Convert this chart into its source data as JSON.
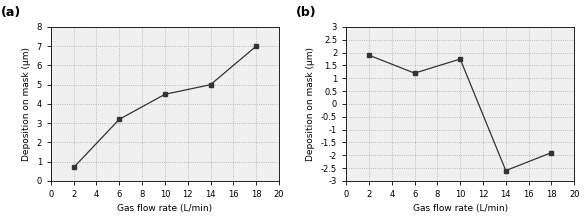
{
  "a_x": [
    2,
    6,
    10,
    14,
    18
  ],
  "a_y": [
    0.7,
    3.2,
    4.5,
    5.0,
    7.0
  ],
  "a_xlabel": "Gas flow rate (L/min)",
  "a_ylabel": "Deposition on mask (μm)",
  "a_xlim": [
    0,
    20
  ],
  "a_ylim": [
    0,
    8
  ],
  "a_yticks": [
    0,
    1,
    2,
    3,
    4,
    5,
    6,
    7,
    8
  ],
  "a_xticks": [
    0,
    2,
    4,
    6,
    8,
    10,
    12,
    14,
    16,
    18,
    20
  ],
  "a_label": "(a)",
  "b_x": [
    2,
    6,
    10,
    14,
    18
  ],
  "b_y": [
    1.9,
    1.2,
    1.75,
    -2.6,
    -1.9
  ],
  "b_xlabel": "Gas flow rate (L/min)",
  "b_ylabel": "Deposition on mask (μm)",
  "b_xlim": [
    0,
    20
  ],
  "b_ylim": [
    -3.0,
    3.0
  ],
  "b_yticks": [
    -3.0,
    -2.5,
    -2.0,
    -1.5,
    -1.0,
    -0.5,
    0.0,
    0.5,
    1.0,
    1.5,
    2.0,
    2.5,
    3.0
  ],
  "b_xticks": [
    0,
    2,
    4,
    6,
    8,
    10,
    12,
    14,
    16,
    18,
    20
  ],
  "b_label": "(b)",
  "line_color": "#333333",
  "marker": "s",
  "markersize": 3.5,
  "linewidth": 0.9,
  "grid_color": "#aaaaaa",
  "grid_style": "dotted",
  "tick_fontsize": 6.0,
  "label_fontsize": 6.5,
  "panel_label_fontsize": 9,
  "panel_label_fontweight": "bold",
  "bg_color": "#f0f0f0"
}
